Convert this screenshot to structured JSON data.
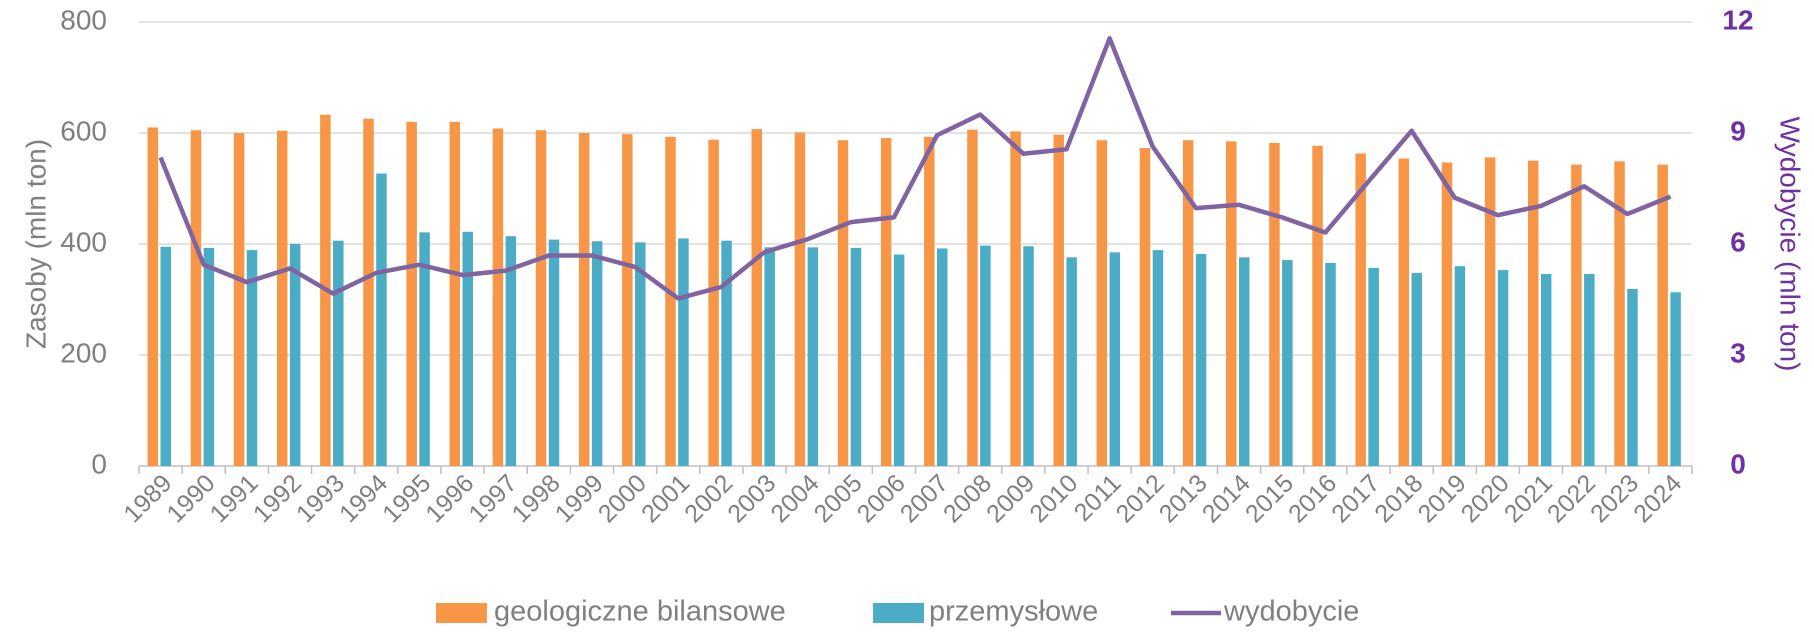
{
  "chart_data": {
    "type": "bar",
    "categories": [
      "1989",
      "1990",
      "1991",
      "1992",
      "1993",
      "1994",
      "1995",
      "1996",
      "1997",
      "1998",
      "1999",
      "2000",
      "2001",
      "2002",
      "2003",
      "2004",
      "2005",
      "2006",
      "2007",
      "2008",
      "2009",
      "2010",
      "2011",
      "2012",
      "2013",
      "2014",
      "2015",
      "2016",
      "2017",
      "2018",
      "2019",
      "2020",
      "2021",
      "2022",
      "2023",
      "2024"
    ],
    "y_label": "Zasoby (mln ton)",
    "y2_label": "Wydobycie (mln ton)",
    "ylim": [
      0,
      800
    ],
    "yticks": [
      0,
      200,
      400,
      600,
      800
    ],
    "y2lim": [
      0,
      12
    ],
    "y2ticks": [
      0,
      3,
      6,
      9,
      12
    ],
    "grid": true,
    "legend": "bottom",
    "series": [
      {
        "name": "geologiczne bilansowe",
        "type": "bar",
        "color": "#f79646",
        "values": [
          610,
          605,
          600,
          604,
          633,
          626,
          620,
          620,
          608,
          605,
          600,
          598,
          593,
          588,
          607,
          601,
          587,
          591,
          593,
          606,
          603,
          597,
          587,
          573,
          587,
          585,
          582,
          577,
          563,
          554,
          547,
          556,
          550,
          543,
          549,
          543
        ]
      },
      {
        "name": "przemysłowe",
        "type": "bar",
        "color": "#4bacc6",
        "values": [
          395,
          393,
          389,
          400,
          406,
          527,
          421,
          422,
          414,
          408,
          405,
          403,
          410,
          406,
          394,
          394,
          393,
          381,
          392,
          397,
          396,
          376,
          385,
          389,
          382,
          376,
          371,
          366,
          357,
          348,
          360,
          353,
          346,
          346,
          319,
          313
        ]
      },
      {
        "name": "wydobycie",
        "type": "line",
        "axis": "y2",
        "color": "#8064a2",
        "values": [
          8.34,
          5.44,
          4.97,
          5.34,
          4.66,
          5.22,
          5.44,
          5.16,
          5.28,
          5.69,
          5.69,
          5.38,
          4.53,
          4.84,
          5.78,
          6.13,
          6.59,
          6.72,
          8.94,
          9.5,
          8.44,
          8.56,
          11.56,
          8.63,
          6.97,
          7.06,
          6.72,
          6.31,
          7.69,
          9.06,
          7.25,
          6.78,
          7.03,
          7.56,
          6.81,
          7.28
        ]
      }
    ]
  }
}
